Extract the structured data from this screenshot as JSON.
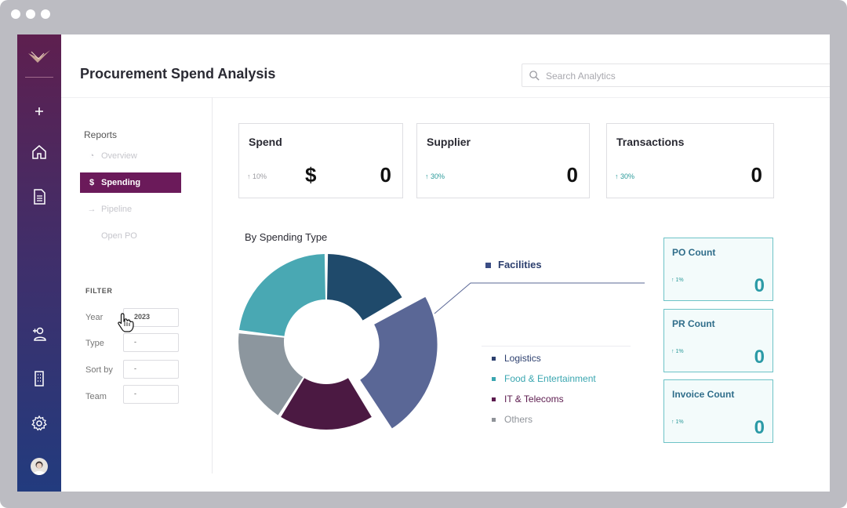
{
  "app": {
    "title": "Procurement Spend Analysis",
    "search_placeholder": "Search Analytics"
  },
  "sidebar": {
    "reports_title": "Reports",
    "items": [
      {
        "label": "Overview",
        "icon": "pie-chart-icon",
        "active": false
      },
      {
        "label": "Spending",
        "icon": "dollar-icon",
        "active": true
      },
      {
        "label": "Pipeline",
        "icon": "arrow-right-icon",
        "active": false
      },
      {
        "label": "Open PO",
        "icon": "",
        "active": false
      }
    ],
    "filter": {
      "title": "FILTER",
      "fields": [
        {
          "label": "Year",
          "value": "2023"
        },
        {
          "label": "Type",
          "value": "-"
        },
        {
          "label": "Sort by",
          "value": "-"
        },
        {
          "label": "Team",
          "value": "-"
        }
      ]
    }
  },
  "kpis": [
    {
      "title": "Spend",
      "trend": "10%",
      "currency": "$",
      "value": "0",
      "trend_color": "#9a9aa0"
    },
    {
      "title": "Supplier",
      "trend": "30%",
      "currency": "",
      "value": "0",
      "trend_color": "#2b9a9a"
    },
    {
      "title": "Transactions",
      "trend": "30%",
      "currency": "",
      "value": "0",
      "trend_color": "#2b9a9a"
    }
  ],
  "chart_data": {
    "type": "pie",
    "title": "By Spending Type",
    "highlighted": "Facilities",
    "categories": [
      "Logistics",
      "Facilities",
      "IT & Telecoms",
      "Others",
      "Food & Entertainment"
    ],
    "values": [
      16,
      23,
      17,
      17,
      22
    ],
    "colors": [
      "#1f4a6b",
      "#5a6796",
      "#4b1942",
      "#8c969e",
      "#49a8b3"
    ],
    "legend": [
      {
        "label": "Logistics",
        "color": "#2c3f6e"
      },
      {
        "label": "Food & Entertainment",
        "color": "#3aa6b0"
      },
      {
        "label": "IT & Telecoms",
        "color": "#5c1b4e"
      },
      {
        "label": "Others",
        "color": "#8f9399"
      }
    ]
  },
  "mini_cards": [
    {
      "title": "PO Count",
      "trend": "1%",
      "value": "0"
    },
    {
      "title": "PR Count",
      "trend": "1%",
      "value": "0"
    },
    {
      "title": "Invoice Count",
      "trend": "1%",
      "value": "0"
    }
  ]
}
